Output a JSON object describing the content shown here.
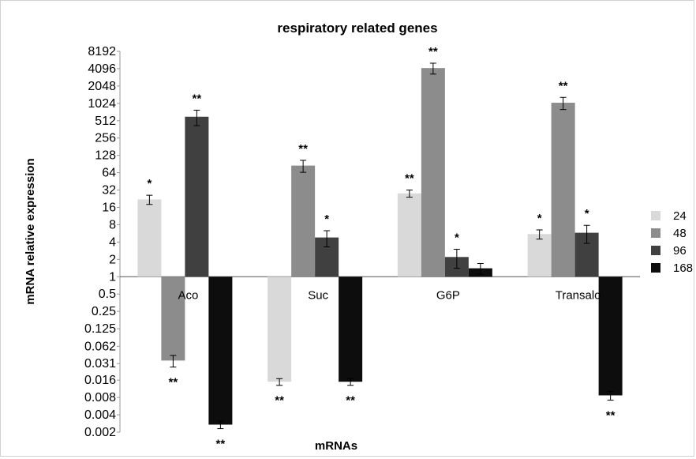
{
  "chart_data": {
    "type": "bar",
    "title": "respiratory related genes",
    "xlabel": "mRNAs",
    "ylabel": "mRNA relative expression",
    "yscale": "log2",
    "yticks": [
      "8192",
      "4096",
      "2048",
      "1024",
      "512",
      "256",
      "128",
      "64",
      "32",
      "16",
      "8",
      "4",
      "2",
      "1",
      "0.5",
      "0.25",
      "0.125",
      "0.062",
      "0.031",
      "0.016",
      "0.008",
      "0.004",
      "0.002"
    ],
    "ylim": [
      0.002,
      8192
    ],
    "grid": false,
    "legend_position": "right",
    "categories": [
      "Aco",
      "Suc",
      "G6P",
      "Transalo"
    ],
    "series": [
      {
        "name": "24",
        "color": "#d9d9d9",
        "values": [
          22,
          0.015,
          28,
          5.5
        ],
        "errors": [
          4,
          0.002,
          4,
          1
        ],
        "significance": [
          "*",
          "**",
          "**",
          "*"
        ]
      },
      {
        "name": "48",
        "color": "#8c8c8c",
        "values": [
          0.035,
          85,
          4200,
          1050
        ],
        "errors": [
          0.008,
          20,
          900,
          250
        ],
        "significance": [
          "**",
          "**",
          "**",
          "**"
        ]
      },
      {
        "name": "96",
        "color": "#404040",
        "values": [
          600,
          4.8,
          2.2,
          5.8
        ],
        "errors": [
          180,
          1.5,
          0.8,
          2
        ],
        "significance": [
          "**",
          "*",
          "*",
          "*"
        ]
      },
      {
        "name": "168",
        "color": "#0d0d0d",
        "values": [
          0.0027,
          0.015,
          1.4,
          0.0087
        ],
        "errors": [
          0.0004,
          0.002,
          0.3,
          0.0015
        ],
        "significance": [
          "**",
          "**",
          "",
          "**"
        ]
      }
    ]
  }
}
